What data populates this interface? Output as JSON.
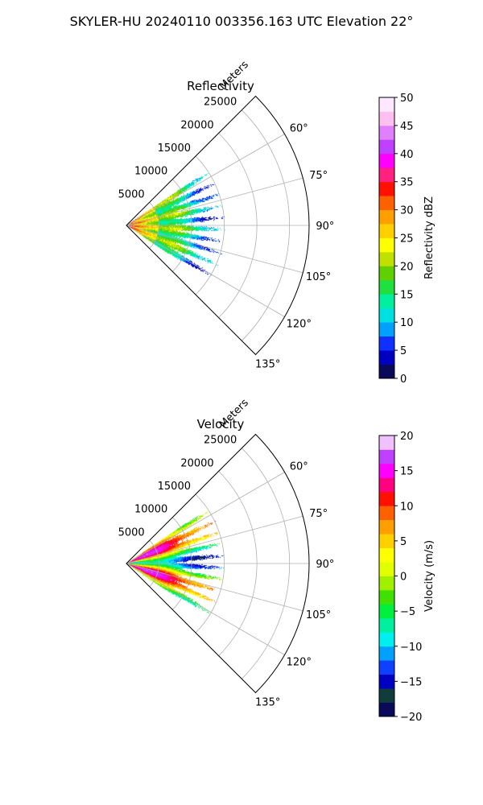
{
  "figure_title": "SKYLER-HU  20240110  003356.163 UTC Elevation 22°",
  "chart_data": [
    {
      "type": "heatmap",
      "projection": "polar-sector",
      "title": "Reflectivity",
      "radial_axis_label": "Meters",
      "radial_range": [
        0,
        28000
      ],
      "radial_ticks": [
        5000,
        10000,
        15000,
        20000,
        25000
      ],
      "radial_tick_labels": [
        "5000",
        "10000",
        "15000",
        "20000",
        "25000"
      ],
      "angle_range_deg": [
        45,
        135
      ],
      "angle_ticks_deg": [
        60,
        75,
        90,
        105,
        120,
        135
      ],
      "angle_tick_labels": [
        "60°",
        "75°",
        "90°",
        "105°",
        "120°",
        "135°"
      ],
      "grid": true,
      "data_range_m": [
        0,
        14000
      ],
      "data_extent_deg": [
        56,
        124
      ],
      "colorbar": {
        "label": "Reflectivity dBZ",
        "min": 0,
        "max": 50,
        "ticks": [
          0,
          5,
          10,
          15,
          20,
          25,
          30,
          35,
          40,
          45,
          50
        ],
        "tick_labels": [
          "0",
          "5",
          "10",
          "15",
          "20",
          "25",
          "30",
          "35",
          "40",
          "45",
          "50"
        ],
        "stops": [
          "#0a0a5a",
          "#0000c0",
          "#1030ff",
          "#00a0ff",
          "#00e0e0",
          "#00f0a0",
          "#20e040",
          "#60d000",
          "#c0e000",
          "#ffff00",
          "#ffd000",
          "#ffa000",
          "#ff6000",
          "#ff1000",
          "#ff2080",
          "#ff00ff",
          "#c040ff",
          "#e080ff",
          "#ffc0f0",
          "#ffe8ff"
        ]
      }
    },
    {
      "type": "heatmap",
      "projection": "polar-sector",
      "title": "Velocity",
      "radial_axis_label": "Meters",
      "radial_range": [
        0,
        28000
      ],
      "radial_ticks": [
        5000,
        10000,
        15000,
        20000,
        25000
      ],
      "radial_tick_labels": [
        "5000",
        "10000",
        "15000",
        "20000",
        "25000"
      ],
      "angle_range_deg": [
        45,
        135
      ],
      "angle_ticks_deg": [
        60,
        75,
        90,
        105,
        120,
        135
      ],
      "angle_tick_labels": [
        "60°",
        "75°",
        "90°",
        "105°",
        "120°",
        "135°"
      ],
      "grid": true,
      "data_range_m": [
        0,
        14000
      ],
      "data_extent_deg": [
        56,
        124
      ],
      "colorbar": {
        "label": "Velocity (m/s)",
        "min": -20,
        "max": 20,
        "ticks": [
          -20,
          -15,
          -10,
          -5,
          0,
          5,
          10,
          15,
          20
        ],
        "tick_labels": [
          "−20",
          "−15",
          "−10",
          "−5",
          "0",
          "5",
          "10",
          "15",
          "20"
        ],
        "stops": [
          "#0a0a5a",
          "#103c3c",
          "#0000c0",
          "#1040ff",
          "#00a0ff",
          "#00f0f0",
          "#00f0a0",
          "#00f040",
          "#40e000",
          "#a0f000",
          "#e0ff00",
          "#ffff00",
          "#ffd000",
          "#ffa000",
          "#ff6000",
          "#ff1000",
          "#ff0080",
          "#ff00ff",
          "#c040ff",
          "#f0c0ff"
        ]
      }
    }
  ]
}
